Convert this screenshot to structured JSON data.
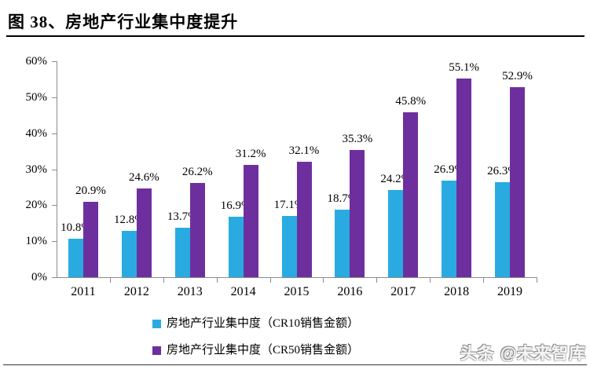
{
  "page": {
    "title": "图 38、房地产行业集中度提升",
    "watermark": "头条 @未来智库"
  },
  "chart_data": {
    "type": "bar",
    "title": "房地产行业集中度提升",
    "categories": [
      "2011",
      "2012",
      "2013",
      "2014",
      "2015",
      "2016",
      "2017",
      "2018",
      "2019"
    ],
    "series": [
      {
        "name": "房地产行业集中度（CR10销售金额）",
        "color": "#29abe2",
        "values": [
          10.8,
          12.8,
          13.7,
          16.9,
          17.1,
          18.7,
          24.2,
          26.9,
          26.3
        ]
      },
      {
        "name": "房地产行业集中度（CR50销售金额）",
        "color": "#6e2f9e",
        "values": [
          20.9,
          24.6,
          26.2,
          31.2,
          32.1,
          35.3,
          45.8,
          55.1,
          52.9
        ]
      }
    ],
    "ylim": [
      0,
      60
    ],
    "ytick_step": 10,
    "ytick_labels": [
      "0%",
      "10%",
      "20%",
      "30%",
      "40%",
      "50%",
      "60%"
    ],
    "data_label_suffix": "%",
    "grid": false,
    "legend_position": "bottom"
  }
}
